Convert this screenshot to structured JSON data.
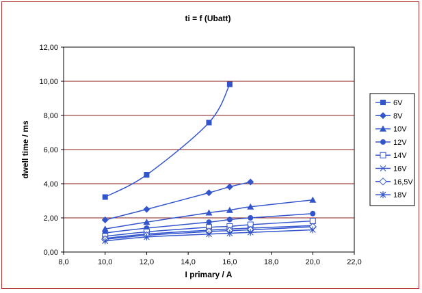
{
  "chart_data": {
    "type": "line",
    "title": "ti = f (Ubatt)",
    "xlabel": "I primary / A",
    "ylabel": "dwell time / ms",
    "xlim": [
      8.0,
      22.0
    ],
    "ylim": [
      0.0,
      12.0
    ],
    "xticks": [
      "8,0",
      "10,0",
      "12,0",
      "14,0",
      "16,0",
      "18,0",
      "20,0",
      "22,0"
    ],
    "yticks": [
      "0,00",
      "2,00",
      "4,00",
      "6,00",
      "8,00",
      "10,00",
      "12,00"
    ],
    "grid": "horizontal",
    "legend_position": "right",
    "line_color": "#3355cc",
    "grid_color": "#8b1a1a",
    "series": [
      {
        "name": "6V",
        "marker": "square-filled",
        "x": [
          10,
          12,
          15,
          16
        ],
        "y": [
          3.22,
          4.52,
          7.58,
          9.82
        ]
      },
      {
        "name": "8V",
        "marker": "diamond-filled",
        "x": [
          10,
          12,
          15,
          16,
          17
        ],
        "y": [
          1.88,
          2.5,
          3.47,
          3.82,
          4.1
        ]
      },
      {
        "name": "10V",
        "marker": "triangle-filled",
        "x": [
          10,
          12,
          15,
          16,
          17,
          20
        ],
        "y": [
          1.35,
          1.75,
          2.3,
          2.45,
          2.65,
          3.05
        ]
      },
      {
        "name": "12V",
        "marker": "circle-filled",
        "x": [
          10,
          12,
          15,
          16,
          17,
          20
        ],
        "y": [
          1.12,
          1.4,
          1.75,
          1.9,
          2.0,
          2.25
        ]
      },
      {
        "name": "14V",
        "marker": "square-open",
        "x": [
          10,
          12,
          15,
          16,
          17,
          20
        ],
        "y": [
          0.92,
          1.18,
          1.45,
          1.5,
          1.6,
          1.82
        ]
      },
      {
        "name": "16V",
        "marker": "x",
        "x": [
          10,
          12,
          15,
          16,
          17,
          20
        ],
        "y": [
          0.8,
          1.05,
          1.28,
          1.35,
          1.4,
          1.55
        ]
      },
      {
        "name": "16,5V",
        "marker": "diamond-open",
        "x": [
          10,
          12,
          15,
          16,
          17,
          20
        ],
        "y": [
          0.75,
          0.98,
          1.2,
          1.25,
          1.3,
          1.48
        ]
      },
      {
        "name": "18V",
        "marker": "asterisk",
        "x": [
          10,
          12,
          15,
          16,
          17,
          20
        ],
        "y": [
          0.65,
          0.88,
          1.05,
          1.1,
          1.15,
          1.3
        ]
      }
    ]
  }
}
